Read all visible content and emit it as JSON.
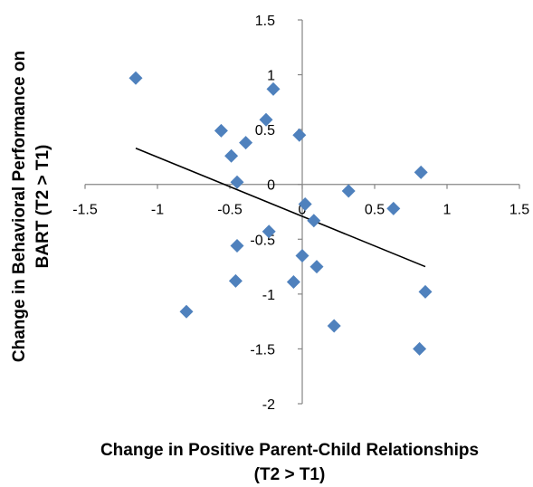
{
  "chart_data": {
    "type": "scatter",
    "title": "",
    "xlabel_lines": [
      "Change in Positive Parent-Child Relationships",
      "(T2 > T1)"
    ],
    "ylabel_lines": [
      "Change in Behavioral Performance on",
      "BART (T2 > T1)"
    ],
    "xlim": [
      -1.5,
      1.5
    ],
    "ylim": [
      -2,
      1.5
    ],
    "xticks": [
      -1.5,
      -1,
      -0.5,
      0,
      0.5,
      1,
      1.5
    ],
    "yticks": [
      -2,
      -1.5,
      -1,
      -0.5,
      0,
      0.5,
      1,
      1.5
    ],
    "xtick_labels": [
      "-1.5",
      "-1",
      "-0.5",
      "0",
      "0.5",
      "1",
      "1.5"
    ],
    "ytick_labels": [
      "-2",
      "-1.5",
      "-1",
      "-0.5",
      "0",
      "0.5",
      "1",
      "1.5"
    ],
    "grid": false,
    "legend": "none",
    "marker": "diamond",
    "point_color": "#4F81BD",
    "trendline_color": "#000000",
    "points": [
      {
        "x": -1.15,
        "y": 0.97
      },
      {
        "x": -0.2,
        "y": 0.87
      },
      {
        "x": -0.25,
        "y": 0.59
      },
      {
        "x": -0.56,
        "y": 0.49
      },
      {
        "x": -0.02,
        "y": 0.45
      },
      {
        "x": -0.39,
        "y": 0.38
      },
      {
        "x": -0.49,
        "y": 0.26
      },
      {
        "x": -0.45,
        "y": 0.02
      },
      {
        "x": 0.82,
        "y": 0.11
      },
      {
        "x": 0.32,
        "y": -0.06
      },
      {
        "x": 0.02,
        "y": -0.18
      },
      {
        "x": 0.63,
        "y": -0.22
      },
      {
        "x": 0.08,
        "y": -0.33
      },
      {
        "x": -0.23,
        "y": -0.43
      },
      {
        "x": -0.45,
        "y": -0.56
      },
      {
        "x": 0.0,
        "y": -0.65
      },
      {
        "x": 0.1,
        "y": -0.75
      },
      {
        "x": -0.46,
        "y": -0.88
      },
      {
        "x": -0.06,
        "y": -0.89
      },
      {
        "x": 0.85,
        "y": -0.98
      },
      {
        "x": -0.8,
        "y": -1.16
      },
      {
        "x": 0.22,
        "y": -1.29
      },
      {
        "x": 0.81,
        "y": -1.5
      }
    ],
    "trendline": {
      "x": [
        -1.15,
        0.85
      ],
      "y": [
        0.33,
        -0.75
      ]
    }
  }
}
